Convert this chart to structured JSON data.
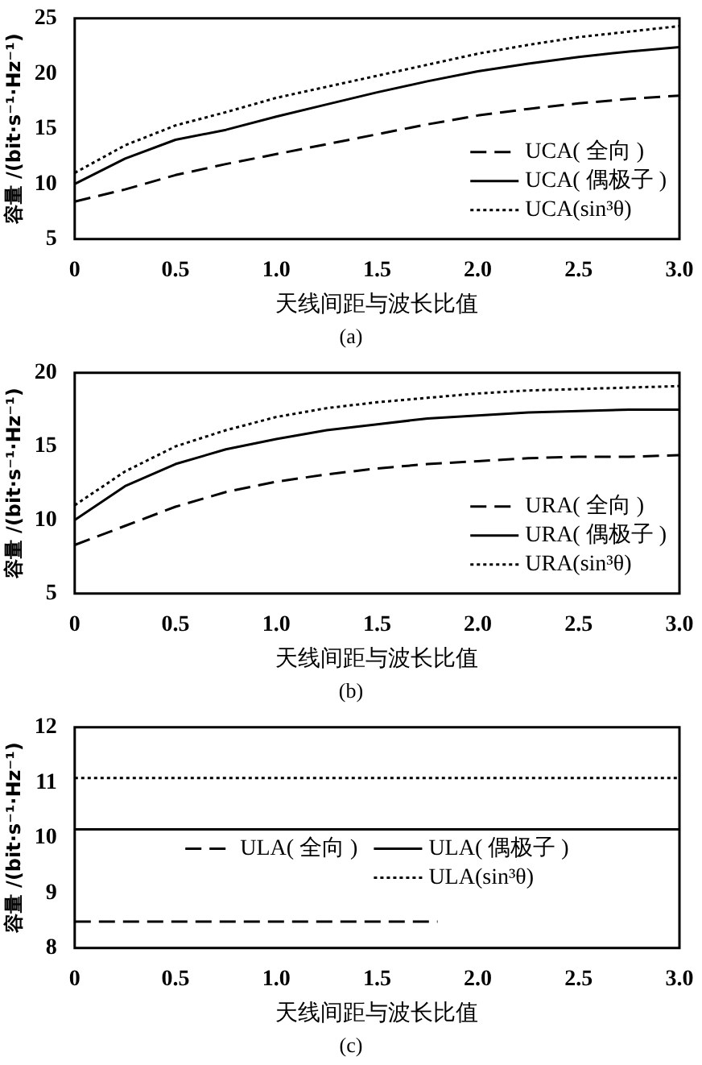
{
  "chart_data": [
    {
      "type": "line",
      "ylabel": "容量 /(bit·s⁻¹·Hz⁻¹)",
      "xlabel": "天线间距与波长比值",
      "annotations": [
        "(a)"
      ],
      "x": [
        0,
        0.25,
        0.5,
        0.75,
        1.0,
        1.25,
        1.5,
        1.75,
        2.0,
        2.25,
        2.5,
        2.75,
        3.0
      ],
      "xlim": [
        0,
        3
      ],
      "xticks": [
        {
          "value": 0,
          "label": "0"
        },
        0.5,
        {
          "value": 1,
          "label": "1.0"
        },
        1.5,
        {
          "value": 2,
          "label": "2.0"
        },
        2.5,
        {
          "value": 3,
          "label": "3.0"
        }
      ],
      "ylim": [
        5,
        25
      ],
      "yticks": [
        5,
        10,
        15,
        20,
        25
      ],
      "grid": false,
      "legend": "bottom right",
      "marker": "none",
      "series": [
        {
          "name": "UCA( 全向 )",
          "color": "#000000",
          "line_style": "dashed",
          "values": [
            8.4,
            9.5,
            10.8,
            11.8,
            12.7,
            13.6,
            14.5,
            15.4,
            16.2,
            16.8,
            17.3,
            17.7,
            18
          ]
        },
        {
          "name": "UCA( 偶极子 )",
          "color": "#000000",
          "line_style": "solid",
          "values": [
            10,
            12.3,
            14,
            14.9,
            16.1,
            17.2,
            18.3,
            19.3,
            20.2,
            20.9,
            21.5,
            22,
            22.4
          ]
        },
        {
          "name": "UCA(sin³θ)",
          "color": "#000000",
          "line_style": "dotted",
          "values": [
            11,
            13.5,
            15.3,
            16.5,
            17.8,
            18.8,
            19.8,
            20.8,
            21.8,
            22.6,
            23.3,
            23.8,
            24.3
          ]
        }
      ]
    },
    {
      "type": "line",
      "ylabel": "容量 /(bit·s⁻¹·Hz⁻¹)",
      "xlabel": "天线间距与波长比值",
      "annotations": [
        "(b)"
      ],
      "x": [
        0,
        0.25,
        0.5,
        0.75,
        1.0,
        1.25,
        1.5,
        1.75,
        2.0,
        2.25,
        2.5,
        2.75,
        3.0
      ],
      "xlim": [
        0,
        3
      ],
      "xticks": [
        {
          "value": 0,
          "label": "0"
        },
        0.5,
        {
          "value": 1,
          "label": "1.0"
        },
        1.5,
        {
          "value": 2,
          "label": "2.0"
        },
        2.5,
        {
          "value": 3,
          "label": "3.0"
        }
      ],
      "ylim": [
        5,
        20
      ],
      "yticks": [
        5,
        10,
        15,
        20
      ],
      "grid": false,
      "legend": "bottom right",
      "marker": "none",
      "series": [
        {
          "name": "URA( 全向 )",
          "color": "#000000",
          "line_style": "dashed",
          "values": [
            8.3,
            9.6,
            10.9,
            11.9,
            12.6,
            13.1,
            13.5,
            13.8,
            14,
            14.2,
            14.3,
            14.3,
            14.4
          ]
        },
        {
          "name": "URA( 偶极子 )",
          "color": "#000000",
          "line_style": "solid",
          "values": [
            10,
            12.3,
            13.8,
            14.8,
            15.5,
            16.1,
            16.5,
            16.9,
            17.1,
            17.3,
            17.4,
            17.5,
            17.5
          ]
        },
        {
          "name": "URA(sin³θ)",
          "color": "#000000",
          "line_style": "dotted",
          "values": [
            11,
            13.3,
            15,
            16.1,
            17,
            17.6,
            18,
            18.3,
            18.6,
            18.8,
            18.9,
            19,
            19.1
          ]
        }
      ]
    },
    {
      "type": "line",
      "ylabel": "容量 /(bit·s⁻¹·Hz⁻¹)",
      "xlabel": "天线间距与波长比值",
      "annotations": [
        "(c)"
      ],
      "x": [
        0,
        3.0
      ],
      "xlim": [
        0,
        3
      ],
      "xticks": [
        {
          "value": 0,
          "label": "0"
        },
        0.5,
        {
          "value": 1,
          "label": "1.0"
        },
        1.5,
        {
          "value": 2,
          "label": "2.0"
        },
        2.5,
        {
          "value": 3,
          "label": "3.0"
        }
      ],
      "ylim": [
        8,
        12
      ],
      "yticks": [
        8,
        9,
        10,
        11,
        12
      ],
      "grid": false,
      "legend": "bottom",
      "marker": "none",
      "series": [
        {
          "name": "ULA( 全向 )",
          "color": "#000000",
          "line_style": "dashed",
          "x": [
            0,
            1.8
          ],
          "values": [
            8.48,
            8.48
          ]
        },
        {
          "name": "ULA( 偶极子 )",
          "color": "#000000",
          "line_style": "solid",
          "values": [
            10.15,
            10.15
          ]
        },
        {
          "name": "ULA(sin³θ)",
          "color": "#000000",
          "line_style": "dotted",
          "values": [
            11.08,
            11.08
          ]
        }
      ]
    }
  ]
}
